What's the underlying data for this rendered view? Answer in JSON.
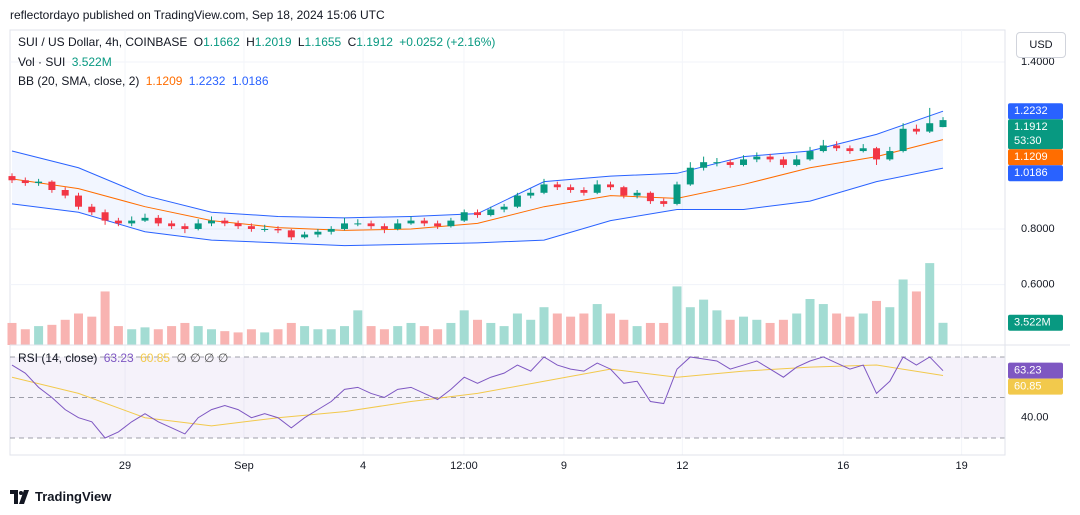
{
  "header": {
    "published": "reflectordayo published on TradingView.com, Sep 18, 2024 15:06 UTC",
    "currency": "USD",
    "brand": "TradingView"
  },
  "chart_data": {
    "type": "candlestick",
    "title": "SUI / US Dollar, 4h, COINBASE",
    "legend": {
      "o_label": "O",
      "o": "1.1662",
      "h_label": "H",
      "h": "1.2019",
      "l_label": "L",
      "l": "1.1655",
      "c_label": "C",
      "c": "1.1912",
      "change": "+0.0252 (+2.16%)"
    },
    "up_color": "#089981",
    "down_color": "#f23645",
    "ohlc": [
      [
        0.99,
        1.0,
        0.965,
        0.975
      ],
      [
        0.975,
        0.985,
        0.955,
        0.965
      ],
      [
        0.965,
        0.98,
        0.955,
        0.97
      ],
      [
        0.97,
        0.975,
        0.93,
        0.94
      ],
      [
        0.94,
        0.95,
        0.91,
        0.92
      ],
      [
        0.92,
        0.93,
        0.87,
        0.88
      ],
      [
        0.88,
        0.89,
        0.85,
        0.86
      ],
      [
        0.86,
        0.87,
        0.815,
        0.83
      ],
      [
        0.83,
        0.84,
        0.81,
        0.82
      ],
      [
        0.82,
        0.845,
        0.81,
        0.83
      ],
      [
        0.83,
        0.855,
        0.825,
        0.84
      ],
      [
        0.84,
        0.85,
        0.81,
        0.82
      ],
      [
        0.82,
        0.83,
        0.8,
        0.81
      ],
      [
        0.81,
        0.82,
        0.785,
        0.8
      ],
      [
        0.8,
        0.835,
        0.795,
        0.82
      ],
      [
        0.82,
        0.845,
        0.81,
        0.83
      ],
      [
        0.83,
        0.84,
        0.81,
        0.82
      ],
      [
        0.82,
        0.83,
        0.8,
        0.81
      ],
      [
        0.81,
        0.82,
        0.79,
        0.8
      ],
      [
        0.8,
        0.815,
        0.79,
        0.8
      ],
      [
        0.8,
        0.81,
        0.785,
        0.795
      ],
      [
        0.795,
        0.8,
        0.76,
        0.77
      ],
      [
        0.77,
        0.79,
        0.765,
        0.78
      ],
      [
        0.78,
        0.8,
        0.77,
        0.79
      ],
      [
        0.79,
        0.81,
        0.78,
        0.8
      ],
      [
        0.8,
        0.84,
        0.795,
        0.82
      ],
      [
        0.82,
        0.835,
        0.81,
        0.82
      ],
      [
        0.82,
        0.83,
        0.8,
        0.81
      ],
      [
        0.81,
        0.82,
        0.785,
        0.8
      ],
      [
        0.8,
        0.835,
        0.795,
        0.82
      ],
      [
        0.82,
        0.845,
        0.815,
        0.83
      ],
      [
        0.83,
        0.84,
        0.81,
        0.82
      ],
      [
        0.82,
        0.83,
        0.8,
        0.81
      ],
      [
        0.81,
        0.84,
        0.805,
        0.83
      ],
      [
        0.83,
        0.87,
        0.825,
        0.86
      ],
      [
        0.86,
        0.87,
        0.84,
        0.85
      ],
      [
        0.85,
        0.88,
        0.845,
        0.87
      ],
      [
        0.87,
        0.89,
        0.86,
        0.88
      ],
      [
        0.88,
        0.93,
        0.875,
        0.92
      ],
      [
        0.92,
        0.945,
        0.91,
        0.93
      ],
      [
        0.93,
        0.98,
        0.925,
        0.96
      ],
      [
        0.96,
        0.97,
        0.94,
        0.95
      ],
      [
        0.95,
        0.96,
        0.93,
        0.94
      ],
      [
        0.94,
        0.95,
        0.92,
        0.93
      ],
      [
        0.93,
        0.975,
        0.925,
        0.96
      ],
      [
        0.96,
        0.97,
        0.94,
        0.95
      ],
      [
        0.95,
        0.955,
        0.91,
        0.92
      ],
      [
        0.92,
        0.94,
        0.91,
        0.93
      ],
      [
        0.93,
        0.935,
        0.89,
        0.9
      ],
      [
        0.9,
        0.91,
        0.88,
        0.89
      ],
      [
        0.89,
        0.97,
        0.885,
        0.96
      ],
      [
        0.96,
        1.04,
        0.955,
        1.02
      ],
      [
        1.02,
        1.06,
        1.01,
        1.04
      ],
      [
        1.04,
        1.055,
        1.025,
        1.04
      ],
      [
        1.04,
        1.05,
        1.02,
        1.03
      ],
      [
        1.03,
        1.065,
        1.025,
        1.05
      ],
      [
        1.05,
        1.075,
        1.04,
        1.06
      ],
      [
        1.06,
        1.07,
        1.04,
        1.05
      ],
      [
        1.05,
        1.06,
        1.02,
        1.03
      ],
      [
        1.03,
        1.065,
        1.025,
        1.05
      ],
      [
        1.05,
        1.095,
        1.045,
        1.08
      ],
      [
        1.08,
        1.12,
        1.075,
        1.1
      ],
      [
        1.1,
        1.115,
        1.08,
        1.09
      ],
      [
        1.09,
        1.1,
        1.07,
        1.08
      ],
      [
        1.08,
        1.105,
        1.075,
        1.09
      ],
      [
        1.09,
        1.095,
        1.03,
        1.05
      ],
      [
        1.05,
        1.095,
        1.045,
        1.08
      ],
      [
        1.08,
        1.18,
        1.075,
        1.16
      ],
      [
        1.16,
        1.175,
        1.14,
        1.15
      ],
      [
        1.15,
        1.235,
        1.145,
        1.18
      ],
      [
        1.1662,
        1.2019,
        1.1655,
        1.1912
      ]
    ],
    "ylim": [
      0.383,
      1.515
    ],
    "yticks": [
      {
        "value": 1.4,
        "label": "1.4000"
      },
      {
        "value": 0.8,
        "label": "0.8000"
      },
      {
        "value": 0.6,
        "label": "0.6000"
      }
    ],
    "xlim": [
      -0.15,
      74.66
    ],
    "xticks": [
      {
        "value": 8.5,
        "label": "29"
      },
      {
        "value": 17.44,
        "label": "Sep"
      },
      {
        "value": 26.4,
        "label": "4"
      },
      {
        "value": 33.98,
        "label": "12:00"
      },
      {
        "value": 41.5,
        "label": "9"
      },
      {
        "value": 50.4,
        "label": "12"
      },
      {
        "value": 62.5,
        "label": "16"
      },
      {
        "value": 71.4,
        "label": "19"
      }
    ],
    "countdown": "53:30",
    "volume": {
      "name": "Vol · SUI",
      "last_label": "3.522M",
      "ylim": [
        0,
        50
      ],
      "up_color": "#a3dcd3",
      "down_color": "#f8b3b1",
      "values": [
        3.5,
        2.5,
        3,
        3.2,
        4,
        5,
        4.5,
        8.5,
        3,
        2.5,
        2.8,
        2.5,
        3,
        3.5,
        3,
        2.5,
        2.2,
        2,
        2.5,
        2,
        2.5,
        3.5,
        3,
        2.5,
        2.5,
        3,
        5.5,
        3,
        2.5,
        3,
        3.5,
        3,
        2.5,
        3.5,
        5.5,
        4,
        3.5,
        3,
        5,
        4,
        6,
        5,
        4.5,
        5,
        6.5,
        5,
        4,
        3,
        3.5,
        3.5,
        9.3,
        6,
        7.2,
        5.5,
        4,
        4.5,
        4,
        3.5,
        4,
        5,
        7.3,
        6.5,
        5,
        4.5,
        5,
        7,
        6,
        10.4,
        8.5,
        13,
        3.522
      ]
    },
    "bb": {
      "name": "BB (20, SMA, close, 2)",
      "basis_label": "1.1209",
      "upper_label": "1.2232",
      "lower_label": "1.0186",
      "basis_color": "#ff6d00",
      "band_color": "#2962ff",
      "x": [
        0,
        5,
        10,
        15,
        20,
        25,
        30,
        35,
        40,
        45,
        50,
        55,
        60,
        65,
        70
      ],
      "upper": [
        1.08,
        1.02,
        0.92,
        0.86,
        0.845,
        0.84,
        0.845,
        0.855,
        0.97,
        0.99,
        1.0,
        1.06,
        1.08,
        1.14,
        1.2232
      ],
      "basis": [
        0.98,
        0.945,
        0.88,
        0.83,
        0.805,
        0.795,
        0.8,
        0.82,
        0.88,
        0.92,
        0.91,
        0.96,
        1.02,
        1.06,
        1.1209
      ],
      "lower": [
        0.89,
        0.86,
        0.79,
        0.76,
        0.75,
        0.74,
        0.745,
        0.75,
        0.76,
        0.83,
        0.87,
        0.87,
        0.9,
        0.97,
        1.0186
      ]
    },
    "rsi": {
      "name": "RSI (14, close)",
      "label": "63.23",
      "ma_label": "60.85",
      "extra": "∅ ∅ ∅ ∅",
      "color": "#7e57c2",
      "ma_color": "#f2c94c",
      "values": [
        66,
        62,
        55,
        50,
        44,
        40,
        38,
        30,
        33,
        38,
        42,
        38,
        35,
        32,
        40,
        44,
        46,
        44,
        40,
        42,
        40,
        35,
        40,
        44,
        48,
        54,
        55,
        52,
        50,
        54,
        55,
        52,
        49,
        54,
        60,
        57,
        60,
        62,
        66,
        63,
        70,
        66,
        64,
        63,
        67,
        64,
        57,
        58,
        48,
        47,
        64,
        70,
        69,
        68,
        64,
        66,
        68,
        64,
        60,
        65,
        68,
        70,
        67,
        64,
        66,
        52,
        58,
        70,
        66,
        70,
        63.23
      ],
      "ma_x": [
        0,
        5,
        10,
        15,
        20,
        25,
        30,
        35,
        40,
        45,
        50,
        55,
        60,
        65,
        70
      ],
      "ma": [
        60,
        52,
        40,
        36,
        40,
        43,
        48,
        52,
        58,
        64,
        60,
        63,
        65,
        66,
        60.85
      ],
      "ylim": [
        21.6,
        75.9
      ],
      "yticks": [
        {
          "value": 40,
          "label": "40.00"
        }
      ],
      "bands": [
        70,
        50,
        30
      ]
    }
  }
}
